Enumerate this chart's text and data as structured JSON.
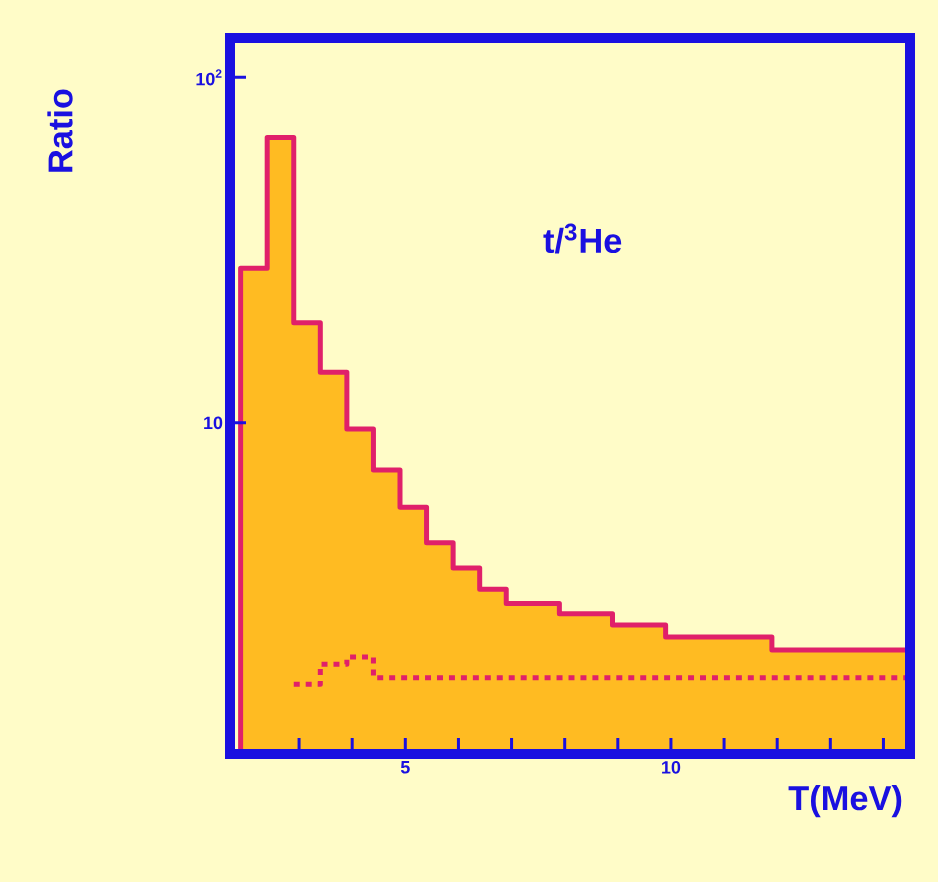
{
  "chart_data": {
    "type": "histogram",
    "xlabel": "T(MeV)",
    "ylabel": "Ratio",
    "annotations": [
      "t/$^{3}$He"
    ],
    "log": true,
    "xlim": [
      1.7,
      14.5
    ],
    "ylim": [
      1.1,
      130
    ],
    "xticks": [
      {
        "value": 3,
        "label": null
      },
      {
        "value": 4,
        "label": null
      },
      5,
      {
        "value": 6,
        "label": null
      },
      {
        "value": 7,
        "label": null
      },
      {
        "value": 8,
        "label": null
      },
      {
        "value": 9,
        "label": null
      },
      10,
      {
        "value": 11,
        "label": null
      },
      {
        "value": 12,
        "label": null
      },
      {
        "value": 13,
        "label": null
      },
      {
        "value": 14,
        "label": null
      }
    ],
    "yticks": [
      10,
      {
        "value": 100,
        "label": "10$^{2}$"
      }
    ],
    "series": [
      {
        "color": "#ffbb22",
        "bins": [
          1.9,
          2.4,
          2.9,
          3.4,
          3.9,
          4.4,
          4.9,
          5.4,
          5.9,
          6.4,
          6.9,
          7.9,
          8.9,
          9.9,
          11.9,
          14.5
        ],
        "values": [
          28,
          67,
          19.5,
          14,
          9.6,
          7.3,
          5.7,
          4.5,
          3.8,
          3.3,
          3.0,
          2.8,
          2.6,
          2.4,
          2.2
        ]
      },
      {
        "type": "step",
        "color": "#e0206a",
        "line_style": "dashed",
        "x": [
          2.9,
          3.4,
          3.9,
          4.4,
          14.5
        ],
        "values": [
          1.75,
          2.0,
          2.1,
          1.83,
          1.83
        ]
      }
    ]
  }
}
